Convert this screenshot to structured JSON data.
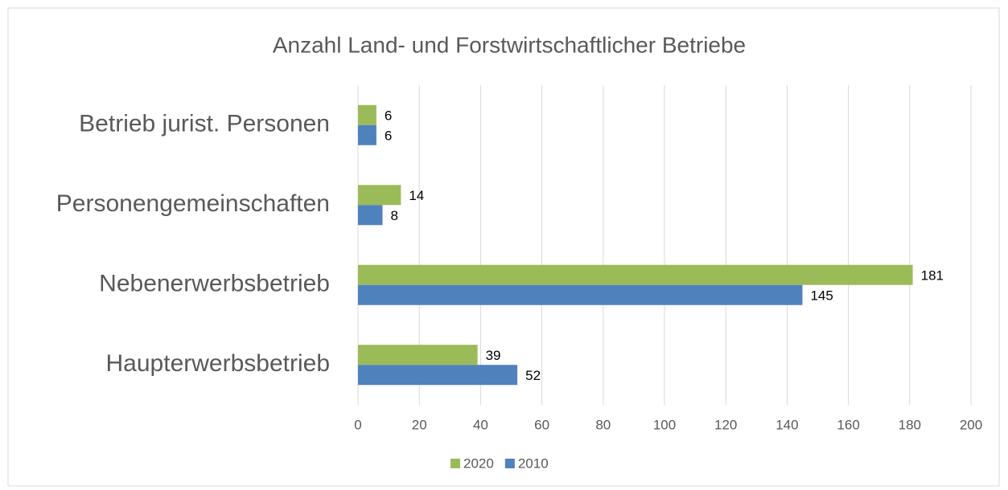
{
  "chart_data": {
    "type": "hbar",
    "title": "Anzahl Land- und Forstwirtschaftlicher Betriebe",
    "categories": [
      "Betrieb jurist. Personen",
      "Personengemeinschaften",
      "Nebenerwerbsbetrieb",
      "Haupterwerbsbetrieb"
    ],
    "series": [
      {
        "name": "2020",
        "color": "#9bbb59",
        "values": [
          6,
          14,
          181,
          39
        ]
      },
      {
        "name": "2010",
        "color": "#4f81bd",
        "values": [
          6,
          8,
          145,
          52
        ]
      }
    ],
    "xlim": [
      0,
      200
    ],
    "xticks": [
      0,
      20,
      40,
      60,
      80,
      100,
      120,
      140,
      160,
      180,
      200
    ],
    "grid": true,
    "legend": "bottom"
  }
}
